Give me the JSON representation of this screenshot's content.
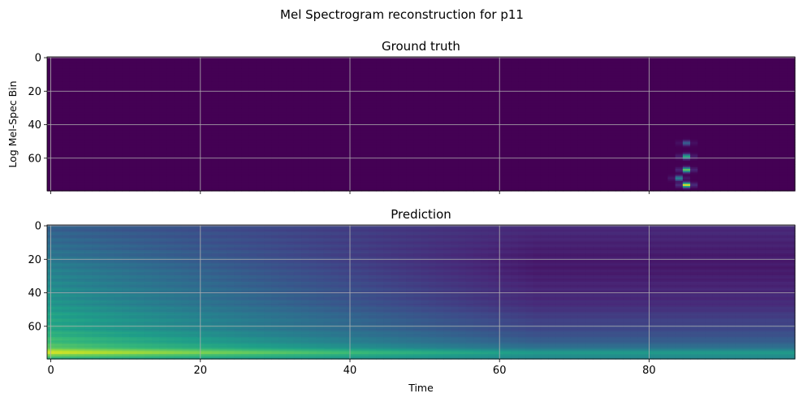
{
  "suptitle": "Mel Spectrogram reconstruction for p11",
  "chart_data": [
    {
      "type": "heatmap",
      "title": "Ground truth",
      "xlabel": "",
      "ylabel": "Log Mel-Spec Bin",
      "xlim": [
        -0.5,
        99.5
      ],
      "ylim": [
        79.5,
        -0.5
      ],
      "y_inverted": true,
      "xticks": [
        0,
        20,
        40,
        60,
        80
      ],
      "xtick_labels_shown": false,
      "yticks": [
        0,
        20,
        40,
        60
      ],
      "grid": true,
      "colormap": "viridis",
      "background_value": 0.0,
      "blobs": [
        {
          "time": 85,
          "bin": 51,
          "value": 0.3
        },
        {
          "time": 85,
          "bin": 59,
          "value": 0.6
        },
        {
          "time": 85,
          "bin": 67,
          "value": 0.75
        },
        {
          "time": 84,
          "bin": 72,
          "value": 0.45
        },
        {
          "time": 85,
          "bin": 76,
          "value": 0.95
        }
      ],
      "shape": [
        80,
        100
      ]
    },
    {
      "type": "heatmap",
      "title": "Prediction",
      "xlabel": "Time",
      "ylabel": "",
      "xlim": [
        -0.5,
        99.5
      ],
      "ylim": [
        79.5,
        -0.5
      ],
      "y_inverted": true,
      "xticks": [
        0,
        20,
        40,
        60,
        80
      ],
      "yticks": [
        0,
        20,
        40,
        60
      ],
      "grid": true,
      "colormap": "viridis",
      "bin_profile_start": [
        {
          "bin": 0,
          "value": 0.3
        },
        {
          "bin": 8,
          "value": 0.34
        },
        {
          "bin": 16,
          "value": 0.38
        },
        {
          "bin": 26,
          "value": 0.44
        },
        {
          "bin": 36,
          "value": 0.48
        },
        {
          "bin": 46,
          "value": 0.52
        },
        {
          "bin": 54,
          "value": 0.58
        },
        {
          "bin": 62,
          "value": 0.6
        },
        {
          "bin": 68,
          "value": 0.68
        },
        {
          "bin": 72,
          "value": 0.72
        },
        {
          "bin": 76,
          "value": 0.95
        },
        {
          "bin": 79,
          "value": 0.62
        }
      ],
      "bin_profile_end": [
        {
          "bin": 0,
          "value": 0.12
        },
        {
          "bin": 8,
          "value": 0.1
        },
        {
          "bin": 16,
          "value": 0.08
        },
        {
          "bin": 26,
          "value": 0.07
        },
        {
          "bin": 36,
          "value": 0.1
        },
        {
          "bin": 46,
          "value": 0.12
        },
        {
          "bin": 54,
          "value": 0.18
        },
        {
          "bin": 62,
          "value": 0.22
        },
        {
          "bin": 68,
          "value": 0.28
        },
        {
          "bin": 72,
          "value": 0.35
        },
        {
          "bin": 76,
          "value": 0.55
        },
        {
          "bin": 79,
          "value": 0.45
        }
      ],
      "shape": [
        80,
        100
      ]
    }
  ]
}
